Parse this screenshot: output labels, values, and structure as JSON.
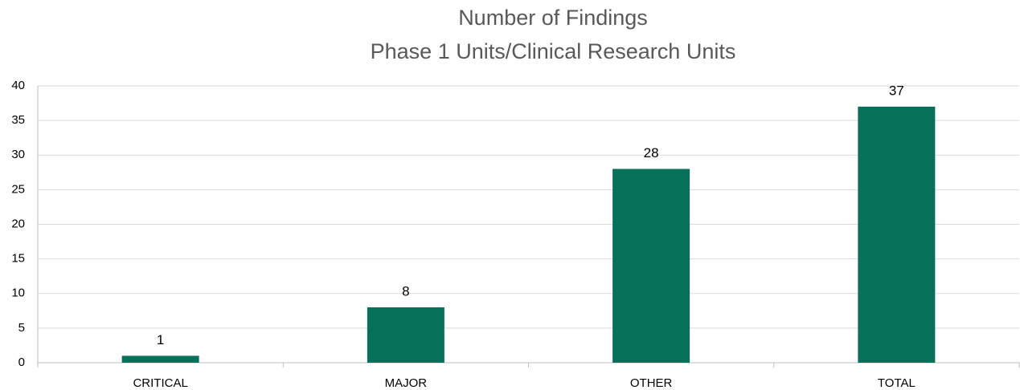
{
  "chart_data": {
    "type": "bar",
    "title": "Number of Findings",
    "subtitle": "Phase 1 Units/Clinical Research Units",
    "categories": [
      "CRITICAL",
      "MAJOR",
      "OTHER",
      "TOTAL"
    ],
    "values": [
      1,
      8,
      28,
      37
    ],
    "color": "#077059",
    "ylim": [
      0,
      40
    ],
    "yticks": [
      0,
      5,
      10,
      15,
      20,
      25,
      30,
      35,
      40
    ],
    "grid": true
  }
}
